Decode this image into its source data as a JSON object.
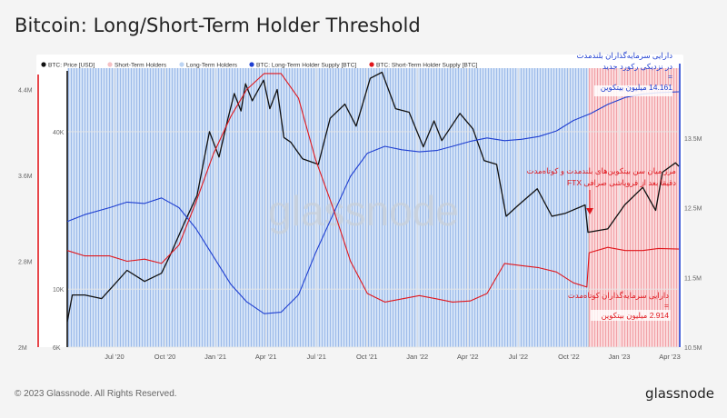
{
  "title": "Bitcoin: Long/Short-Term Holder Threshold",
  "footer": {
    "copyright": "© 2023 Glassnode. All Rights Reserved.",
    "brand": "glassnode"
  },
  "watermark": "glassnode",
  "colors": {
    "price": "#111111",
    "lth_supply": "#1f3fd1",
    "sth_supply": "#e0171d",
    "lth_area": "#bcd4f3",
    "sth_area": "#f6c1c4",
    "annotation_blue": "#1f3fd1",
    "annotation_red": "#e0171d"
  },
  "annotations": {
    "lth_line1": "دارایی سرمایه‌گذاران بلندمدت",
    "lth_line2": "در نزدیکی رکورد جدید",
    "lth_eq": "=",
    "lth_value": "14.161 میلیون بیتکوین",
    "boundary_line1": "مرز میان سن بیتکوین‌های بلندمدت و کوتاه‌مدت",
    "boundary_line2": "دقیقا بعد از فروپاشی صرافی FTX",
    "sth_line1": "دارایی سرمایه‌گذاران کوتاه‌مدت",
    "sth_eq": "=",
    "sth_value": "2.914 میلیون بیتکوین"
  },
  "chart_data": {
    "type": "line",
    "title": "Bitcoin: Long/Short-Term Holder Threshold",
    "legend_position": "top-left",
    "legend": [
      "BTC: Price [USD]",
      "Short-Term Holders",
      "Long-Term Holders",
      "BTC: Long-Term Holder Supply [BTC]",
      "BTC: Short-Term Holder Supply [BTC]"
    ],
    "x_ticks": [
      "Jul '20",
      "Oct '20",
      "Jan '21",
      "Apr '21",
      "Jul '21",
      "Oct '21",
      "Jan '22",
      "Apr '22",
      "Jul '22",
      "Oct '22",
      "Jan '23",
      "Apr '23"
    ],
    "y_left_outer": {
      "ticks": [
        "2M",
        "2.8M",
        "3.6M",
        "4.4M"
      ],
      "range": [
        2000000,
        4600000
      ]
    },
    "y_left_inner": {
      "ticks": [
        "6K",
        "10K",
        "40K"
      ],
      "range": [
        6000,
        70000
      ],
      "scale": "log"
    },
    "y_right": {
      "ticks": [
        "10.5M",
        "11.5M",
        "12.5M",
        "13.5M"
      ],
      "range": [
        10500000,
        14500000
      ]
    },
    "x_range": [
      "2020-05-01",
      "2023-04-20"
    ],
    "series": [
      {
        "name": "BTC: Price [USD]",
        "axis": "price",
        "points": [
          [
            "2020-05-01",
            7500
          ],
          [
            "2020-05-10",
            9500
          ],
          [
            "2020-06-01",
            9500
          ],
          [
            "2020-07-01",
            9200
          ],
          [
            "2020-07-25",
            10500
          ],
          [
            "2020-08-15",
            11800
          ],
          [
            "2020-09-15",
            10700
          ],
          [
            "2020-10-15",
            11500
          ],
          [
            "2020-11-01",
            13700
          ],
          [
            "2020-11-25",
            18000
          ],
          [
            "2020-12-17",
            22800
          ],
          [
            "2021-01-08",
            40000
          ],
          [
            "2021-01-25",
            32000
          ],
          [
            "2021-02-10",
            45000
          ],
          [
            "2021-02-21",
            56000
          ],
          [
            "2021-03-05",
            48000
          ],
          [
            "2021-03-13",
            61000
          ],
          [
            "2021-03-25",
            52500
          ],
          [
            "2021-04-14",
            63000
          ],
          [
            "2021-04-25",
            49000
          ],
          [
            "2021-05-08",
            58000
          ],
          [
            "2021-05-20",
            38000
          ],
          [
            "2021-06-01",
            36500
          ],
          [
            "2021-06-22",
            31500
          ],
          [
            "2021-07-20",
            30000
          ],
          [
            "2021-08-10",
            45000
          ],
          [
            "2021-09-05",
            51000
          ],
          [
            "2021-09-25",
            42000
          ],
          [
            "2021-10-20",
            64000
          ],
          [
            "2021-11-10",
            67500
          ],
          [
            "2021-12-04",
            49000
          ],
          [
            "2021-12-28",
            47500
          ],
          [
            "2022-01-22",
            35000
          ],
          [
            "2022-02-10",
            44000
          ],
          [
            "2022-02-24",
            37000
          ],
          [
            "2022-03-28",
            47000
          ],
          [
            "2022-04-20",
            41000
          ],
          [
            "2022-05-10",
            31000
          ],
          [
            "2022-06-01",
            30000
          ],
          [
            "2022-06-18",
            19000
          ],
          [
            "2022-07-10",
            21000
          ],
          [
            "2022-08-12",
            24200
          ],
          [
            "2022-09-07",
            19000
          ],
          [
            "2022-10-01",
            19500
          ],
          [
            "2022-11-05",
            21000
          ],
          [
            "2022-11-10",
            16500
          ],
          [
            "2022-12-15",
            17000
          ],
          [
            "2023-01-14",
            21000
          ],
          [
            "2023-02-15",
            24500
          ],
          [
            "2023-03-10",
            20000
          ],
          [
            "2023-03-22",
            28000
          ],
          [
            "2023-04-14",
            30400
          ],
          [
            "2023-04-20",
            29500
          ]
        ]
      },
      {
        "name": "BTC: Long-Term Holder Supply [BTC]",
        "axis": "right",
        "points": [
          [
            "2020-05-01",
            12300000
          ],
          [
            "2020-06-01",
            12400000
          ],
          [
            "2020-07-15",
            12500000
          ],
          [
            "2020-08-15",
            12580000
          ],
          [
            "2020-09-15",
            12560000
          ],
          [
            "2020-10-15",
            12640000
          ],
          [
            "2020-11-15",
            12500000
          ],
          [
            "2020-12-15",
            12200000
          ],
          [
            "2021-01-15",
            11800000
          ],
          [
            "2021-02-15",
            11400000
          ],
          [
            "2021-03-15",
            11150000
          ],
          [
            "2021-04-15",
            10980000
          ],
          [
            "2021-05-15",
            11000000
          ],
          [
            "2021-06-15",
            11250000
          ],
          [
            "2021-07-15",
            11850000
          ],
          [
            "2021-08-15",
            12400000
          ],
          [
            "2021-09-15",
            12950000
          ],
          [
            "2021-10-15",
            13280000
          ],
          [
            "2021-11-15",
            13380000
          ],
          [
            "2021-12-15",
            13330000
          ],
          [
            "2022-01-15",
            13300000
          ],
          [
            "2022-02-15",
            13320000
          ],
          [
            "2022-03-15",
            13380000
          ],
          [
            "2022-04-15",
            13450000
          ],
          [
            "2022-05-15",
            13500000
          ],
          [
            "2022-06-15",
            13460000
          ],
          [
            "2022-07-15",
            13480000
          ],
          [
            "2022-08-15",
            13520000
          ],
          [
            "2022-09-15",
            13600000
          ],
          [
            "2022-10-15",
            13750000
          ],
          [
            "2022-11-15",
            13850000
          ],
          [
            "2022-12-15",
            13980000
          ],
          [
            "2023-01-15",
            14080000
          ],
          [
            "2023-02-15",
            14130000
          ],
          [
            "2023-03-15",
            14150000
          ],
          [
            "2023-04-20",
            14161000
          ]
        ]
      },
      {
        "name": "BTC: Short-Term Holder Supply [BTC]",
        "axis": "supply",
        "points": [
          [
            "2020-05-01",
            2900000
          ],
          [
            "2020-06-01",
            2850000
          ],
          [
            "2020-07-15",
            2850000
          ],
          [
            "2020-08-15",
            2800000
          ],
          [
            "2020-09-15",
            2820000
          ],
          [
            "2020-10-15",
            2780000
          ],
          [
            "2020-11-15",
            2950000
          ],
          [
            "2020-12-15",
            3350000
          ],
          [
            "2021-01-15",
            3800000
          ],
          [
            "2021-02-15",
            4150000
          ],
          [
            "2021-03-15",
            4400000
          ],
          [
            "2021-04-15",
            4550000
          ],
          [
            "2021-05-15",
            4550000
          ],
          [
            "2021-06-15",
            4320000
          ],
          [
            "2021-07-15",
            3750000
          ],
          [
            "2021-08-15",
            3300000
          ],
          [
            "2021-09-15",
            2800000
          ],
          [
            "2021-10-15",
            2500000
          ],
          [
            "2021-11-15",
            2420000
          ],
          [
            "2021-12-15",
            2450000
          ],
          [
            "2022-01-15",
            2480000
          ],
          [
            "2022-02-15",
            2450000
          ],
          [
            "2022-03-15",
            2420000
          ],
          [
            "2022-04-15",
            2430000
          ],
          [
            "2022-05-15",
            2500000
          ],
          [
            "2022-06-15",
            2780000
          ],
          [
            "2022-07-15",
            2760000
          ],
          [
            "2022-08-15",
            2740000
          ],
          [
            "2022-09-15",
            2700000
          ],
          [
            "2022-10-15",
            2600000
          ],
          [
            "2022-11-08",
            2560000
          ],
          [
            "2022-11-12",
            2880000
          ],
          [
            "2022-12-15",
            2930000
          ],
          [
            "2023-01-15",
            2900000
          ],
          [
            "2023-02-15",
            2900000
          ],
          [
            "2023-03-15",
            2920000
          ],
          [
            "2023-04-20",
            2914000
          ]
        ]
      }
    ],
    "sth_lth_boundary_date": "2022-11-11"
  }
}
